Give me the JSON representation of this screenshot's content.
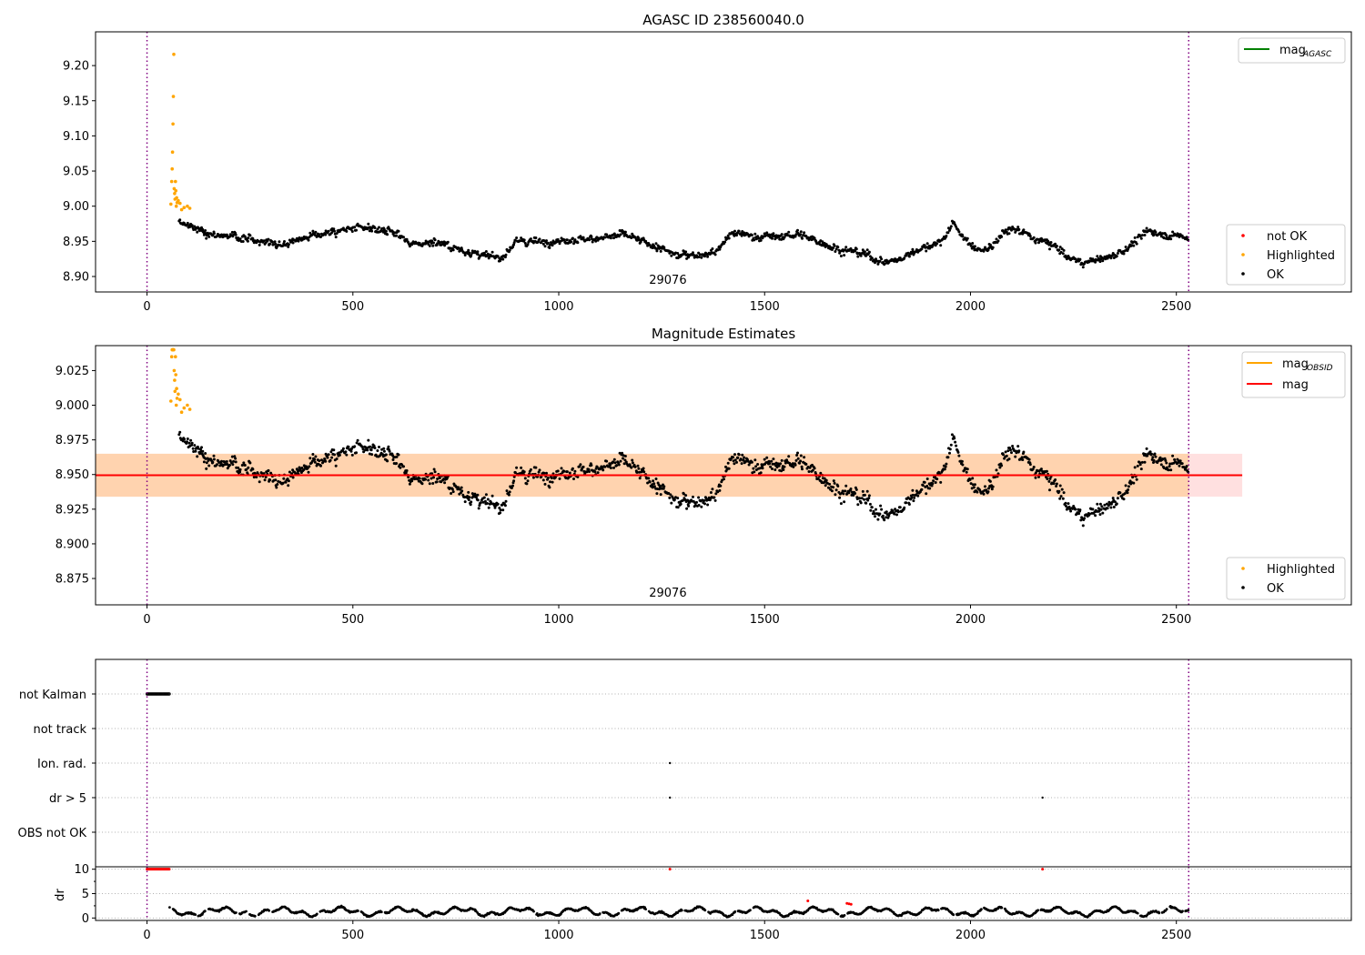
{
  "chart_data": [
    {
      "type": "scatter",
      "title": "AGASC ID 238560040.0",
      "xlim": [
        -125,
        2925
      ],
      "ylim": [
        8.878,
        9.248
      ],
      "xticks": [
        0,
        500,
        1000,
        1500,
        2000,
        2500
      ],
      "yticks": [
        8.9,
        8.95,
        9.0,
        9.05,
        9.1,
        9.15,
        9.2
      ],
      "ytick_labels": [
        "8.90",
        "8.95",
        "9.00",
        "9.05",
        "9.10",
        "9.15",
        "9.20"
      ],
      "vlines": [
        0,
        2530
      ],
      "annotation": {
        "text": "29076",
        "x": 1265
      },
      "legend_top": {
        "position": "top-right",
        "entries": [
          {
            "label": "mag",
            "sub": "AGASC",
            "color": "#008000",
            "kind": "line"
          }
        ]
      },
      "legend_bottom": {
        "position": "bottom-right",
        "entries": [
          {
            "label": "not OK",
            "color": "#ff0000",
            "kind": "marker"
          },
          {
            "label": "Highlighted",
            "color": "#ffa500",
            "kind": "marker"
          },
          {
            "label": "OK",
            "color": "#000000",
            "kind": "marker"
          }
        ]
      },
      "series": [
        {
          "name": "Highlighted",
          "color": "#ffa500",
          "x": [
            58,
            60,
            61,
            62,
            63,
            64,
            65,
            66,
            67,
            68,
            69,
            70,
            71,
            72,
            73,
            76,
            80,
            84,
            90,
            98,
            104
          ],
          "y": [
            9.003,
            9.035,
            9.053,
            9.077,
            9.117,
            9.156,
            9.216,
            9.025,
            9.018,
            9.01,
            9.035,
            9.022,
            9.0,
            9.012,
            9.005,
            9.008,
            9.004,
            8.995,
            8.998,
            9.0,
            8.997
          ]
        },
        {
          "name": "OK",
          "color": "#000000",
          "type": "trend",
          "x": [
            75,
            100,
            150,
            200,
            260,
            330,
            400,
            470,
            540,
            600,
            650,
            700,
            760,
            820,
            860,
            900,
            960,
            1040,
            1100,
            1160,
            1230,
            1290,
            1340,
            1380,
            1420,
            1480,
            1540,
            1580,
            1620,
            1680,
            1740,
            1790,
            1830,
            1880,
            1930,
            1960,
            2000,
            2040,
            2080,
            2110,
            2160,
            2200,
            2240,
            2280,
            2330,
            2380,
            2430,
            2470,
            2530
          ],
          "y": [
            8.98,
            8.972,
            8.962,
            8.958,
            8.952,
            8.946,
            8.958,
            8.966,
            8.968,
            8.962,
            8.945,
            8.95,
            8.938,
            8.93,
            8.926,
            8.95,
            8.95,
            8.952,
            8.955,
            8.96,
            8.943,
            8.93,
            8.932,
            8.934,
            8.962,
            8.958,
            8.956,
            8.96,
            8.952,
            8.94,
            8.932,
            8.92,
            8.925,
            8.94,
            8.95,
            8.976,
            8.943,
            8.936,
            8.962,
            8.968,
            8.952,
            8.945,
            8.925,
            8.92,
            8.925,
            8.94,
            8.965,
            8.96,
            8.955
          ]
        }
      ]
    },
    {
      "type": "scatter",
      "title": "Magnitude Estimates",
      "xlim": [
        -125,
        2925
      ],
      "ylim": [
        8.856,
        9.043
      ],
      "xticks": [
        0,
        500,
        1000,
        1500,
        2000,
        2500
      ],
      "yticks": [
        8.875,
        8.9,
        8.925,
        8.95,
        8.975,
        9.0,
        9.025
      ],
      "ytick_labels": [
        "8.875",
        "8.900",
        "8.925",
        "8.950",
        "8.975",
        "9.000",
        "9.025"
      ],
      "vlines": [
        0,
        2530
      ],
      "annotation": {
        "text": "29076",
        "x": 1265
      },
      "mag_line": {
        "value": 8.9495,
        "x": [
          -125,
          2660
        ]
      },
      "band_mag": {
        "y": [
          8.934,
          8.965
        ],
        "x": [
          -125,
          2660
        ]
      },
      "band_obsid": {
        "y": [
          8.934,
          8.965
        ],
        "x": [
          -125,
          2530
        ]
      },
      "legend_top": {
        "position": "top-right",
        "entries": [
          {
            "label": "mag",
            "sub": "OBSID",
            "color": "#ffa500",
            "kind": "line"
          },
          {
            "label": "mag",
            "sub": "",
            "color": "#ff0000",
            "kind": "line"
          }
        ]
      },
      "legend_bottom": {
        "position": "bottom-right",
        "entries": [
          {
            "label": "Highlighted",
            "color": "#ffa500",
            "kind": "marker"
          },
          {
            "label": "OK",
            "color": "#000000",
            "kind": "marker"
          }
        ]
      },
      "series": [
        {
          "name": "Highlighted",
          "color": "#ffa500",
          "x": [
            58,
            60,
            61,
            62,
            63,
            64,
            65,
            66,
            67,
            68,
            69,
            70,
            71,
            72,
            73,
            76,
            80,
            84,
            90,
            98,
            104
          ],
          "y": [
            9.003,
            9.035,
            9.04,
            9.04,
            9.04,
            9.04,
            9.04,
            9.025,
            9.018,
            9.01,
            9.035,
            9.022,
            9.0,
            9.012,
            9.005,
            9.008,
            9.004,
            8.995,
            8.998,
            9.0,
            8.997
          ]
        }
      ]
    },
    {
      "type": "scatter",
      "title": "",
      "xlim": [
        -125,
        2925
      ],
      "categories": [
        "not Kalman",
        "not track",
        "Ion. rad.",
        "dr > 5",
        "OBS not OK"
      ],
      "vlines": [
        0,
        2530
      ],
      "series": [
        {
          "name": "not Kalman",
          "x_range": [
            0,
            55
          ]
        },
        {
          "name": "Ion. rad.",
          "x": [
            1270
          ]
        },
        {
          "name": "dr > 5",
          "x": [
            1270,
            2175
          ]
        }
      ]
    },
    {
      "type": "scatter",
      "title": "",
      "xlim": [
        -125,
        2925
      ],
      "ylim": [
        -0.5,
        10.5
      ],
      "xticks": [
        0,
        500,
        1000,
        1500,
        2000,
        2500
      ],
      "yticks": [
        0,
        5,
        10
      ],
      "ytick_labels": [
        "0",
        "5",
        "10"
      ],
      "ylabel": "dr",
      "vlines": [
        0,
        2530
      ],
      "series": [
        {
          "name": "not OK",
          "color": "#ff0000",
          "x_range": [
            0,
            55
          ],
          "y_value": 10
        },
        {
          "name": "not OK",
          "color": "#ff0000",
          "x": [
            1270,
            2175,
            1605,
            1700,
            1705,
            1710
          ],
          "y": [
            10,
            10,
            3.5,
            3.0,
            2.9,
            2.8
          ]
        }
      ]
    }
  ]
}
